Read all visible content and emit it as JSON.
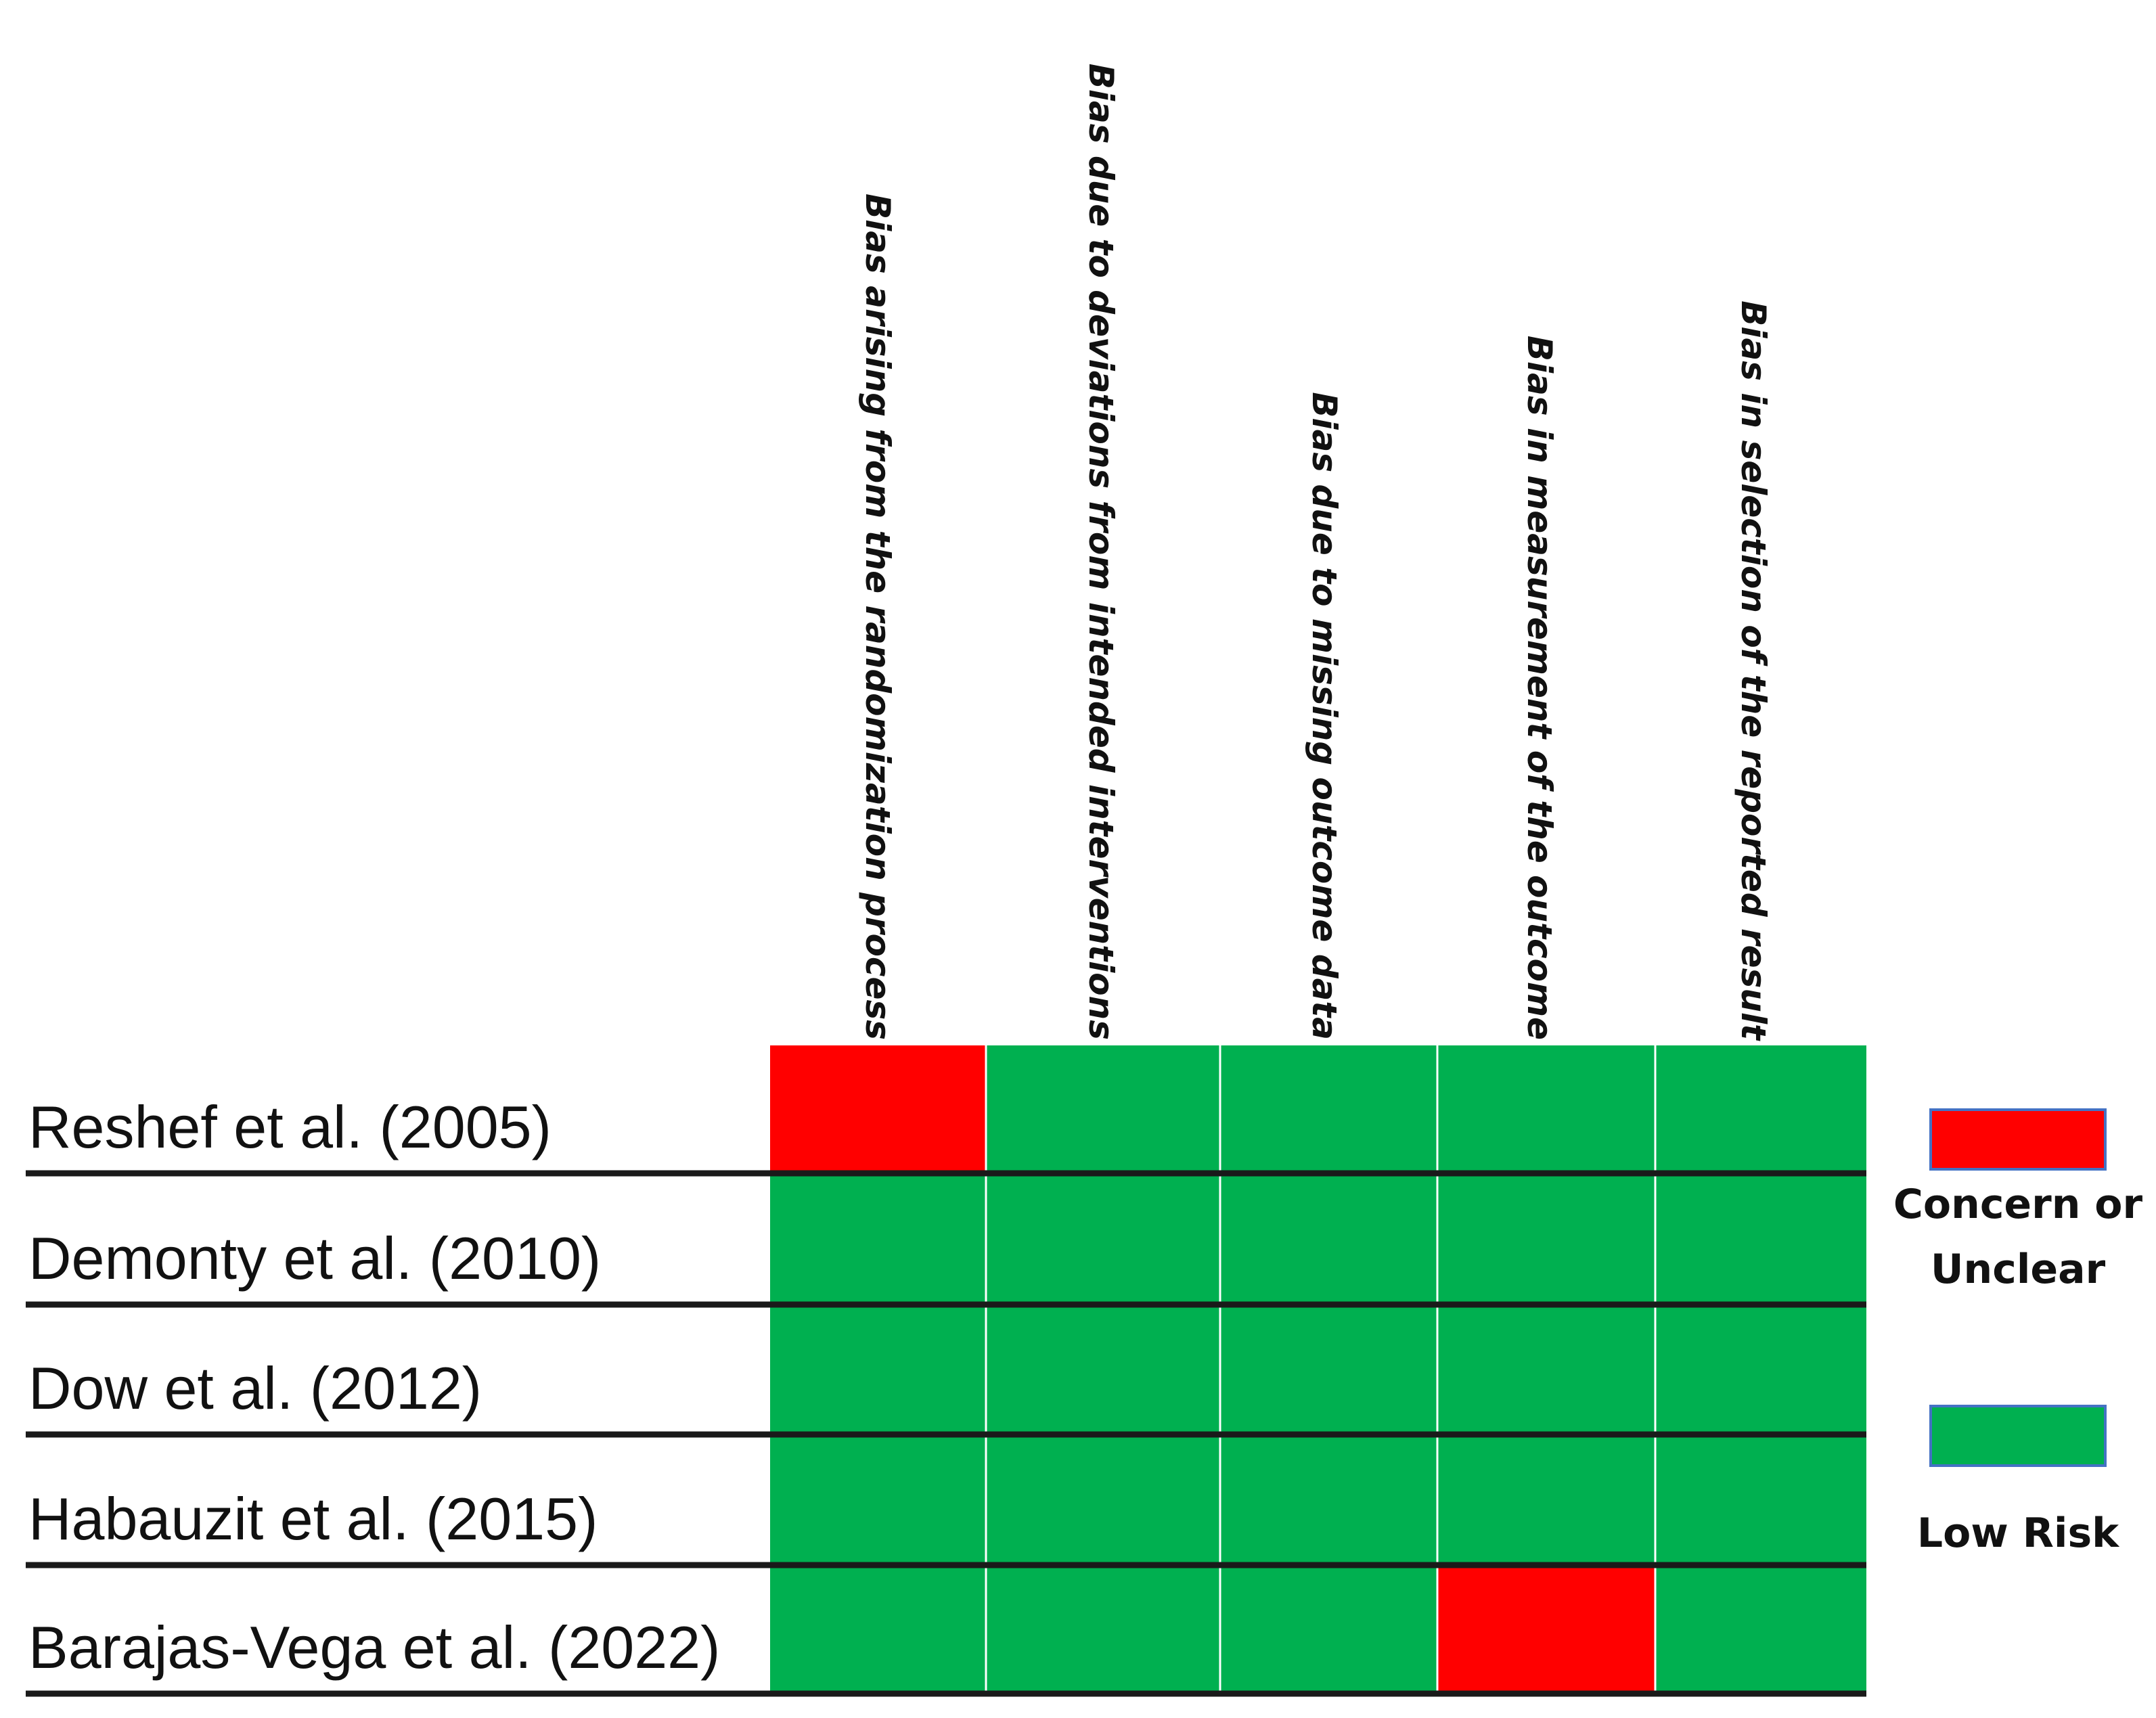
{
  "chart_data": {
    "type": "heatmap",
    "columns": [
      "Bias arising from the randomization process",
      "Bias due to deviations from intended interventions",
      "Bias due to missing outcome data",
      "Bias in measurement of the outcome",
      "Bias in selection of the reported result"
    ],
    "rows": [
      "Reshef et al. (2005)",
      "Demonty et al. (2010)",
      "Dow et al. (2012)",
      "Habauzit et al. (2015)",
      "Barajas-Vega et al. (2022)"
    ],
    "values": [
      [
        "Concern or Unclear",
        "Low Risk",
        "Low Risk",
        "Low Risk",
        "Low Risk"
      ],
      [
        "Low Risk",
        "Low Risk",
        "Low Risk",
        "Low Risk",
        "Low Risk"
      ],
      [
        "Low Risk",
        "Low Risk",
        "Low Risk",
        "Low Risk",
        "Low Risk"
      ],
      [
        "Low Risk",
        "Low Risk",
        "Low Risk",
        "Low Risk",
        "Low Risk"
      ],
      [
        "Low Risk",
        "Low Risk",
        "Low Risk",
        "Concern or Unclear",
        "Low Risk"
      ]
    ],
    "legend": [
      {
        "lines": [
          "Concern or",
          "Unclear"
        ],
        "value": "Concern or Unclear",
        "color": "#ff0000"
      },
      {
        "lines": [
          "Low Risk"
        ],
        "value": "Low Risk",
        "color": "#00b050"
      }
    ],
    "legend_position": "right"
  }
}
